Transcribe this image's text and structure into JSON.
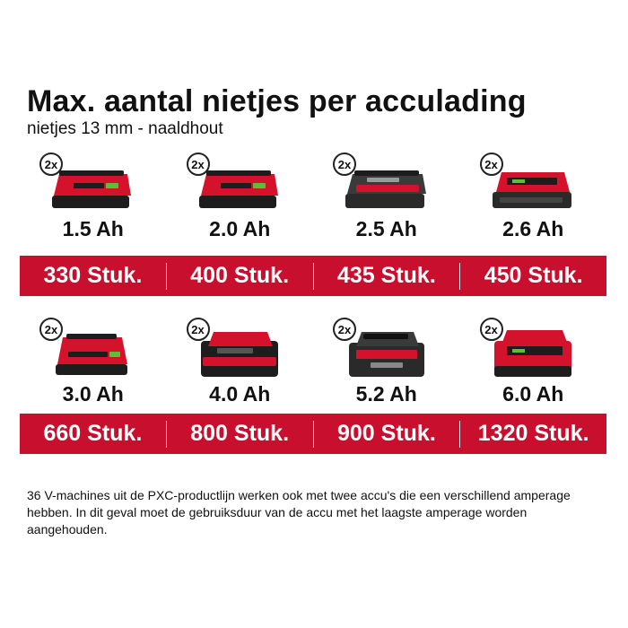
{
  "title": "Max. aantal nietjes per acculading",
  "subtitle": "nietjes 13 mm - naaldhout",
  "batteries": [
    {
      "quantity_badge": "2x",
      "capacity": "1.5 Ah",
      "count": "330 Stuk.",
      "icon": "battery-slim-icon"
    },
    {
      "quantity_badge": "2x",
      "capacity": "2.0 Ah",
      "count": "400 Stuk.",
      "icon": "battery-slim-icon"
    },
    {
      "quantity_badge": "2x",
      "capacity": "2.5 Ah",
      "count": "435 Stuk.",
      "icon": "battery-slim-dark-icon"
    },
    {
      "quantity_badge": "2x",
      "capacity": "2.6 Ah",
      "count": "450 Stuk.",
      "icon": "battery-slim-red-top-icon"
    },
    {
      "quantity_badge": "2x",
      "capacity": "3.0 Ah",
      "count": "660 Stuk.",
      "icon": "battery-medium-icon"
    },
    {
      "quantity_badge": "2x",
      "capacity": "4.0 Ah",
      "count": "800 Stuk.",
      "icon": "battery-tall-icon"
    },
    {
      "quantity_badge": "2x",
      "capacity": "5.2 Ah",
      "count": "900 Stuk.",
      "icon": "battery-tall-dark-icon"
    },
    {
      "quantity_badge": "2x",
      "capacity": "6.0 Ah",
      "count": "1320 Stuk.",
      "icon": "battery-tall-red-icon"
    }
  ],
  "footnote": "36 V-machines uit de PXC-productlijn werken ook met twee accu's die een verschillend amperage hebben. In dit geval moet de gebruiksduur van de accu met het laagste amperage worden aangehouden.",
  "colors": {
    "accent_red": "#c8102e",
    "battery_red": "#d4122b",
    "battery_dark": "#1d1d1d"
  }
}
